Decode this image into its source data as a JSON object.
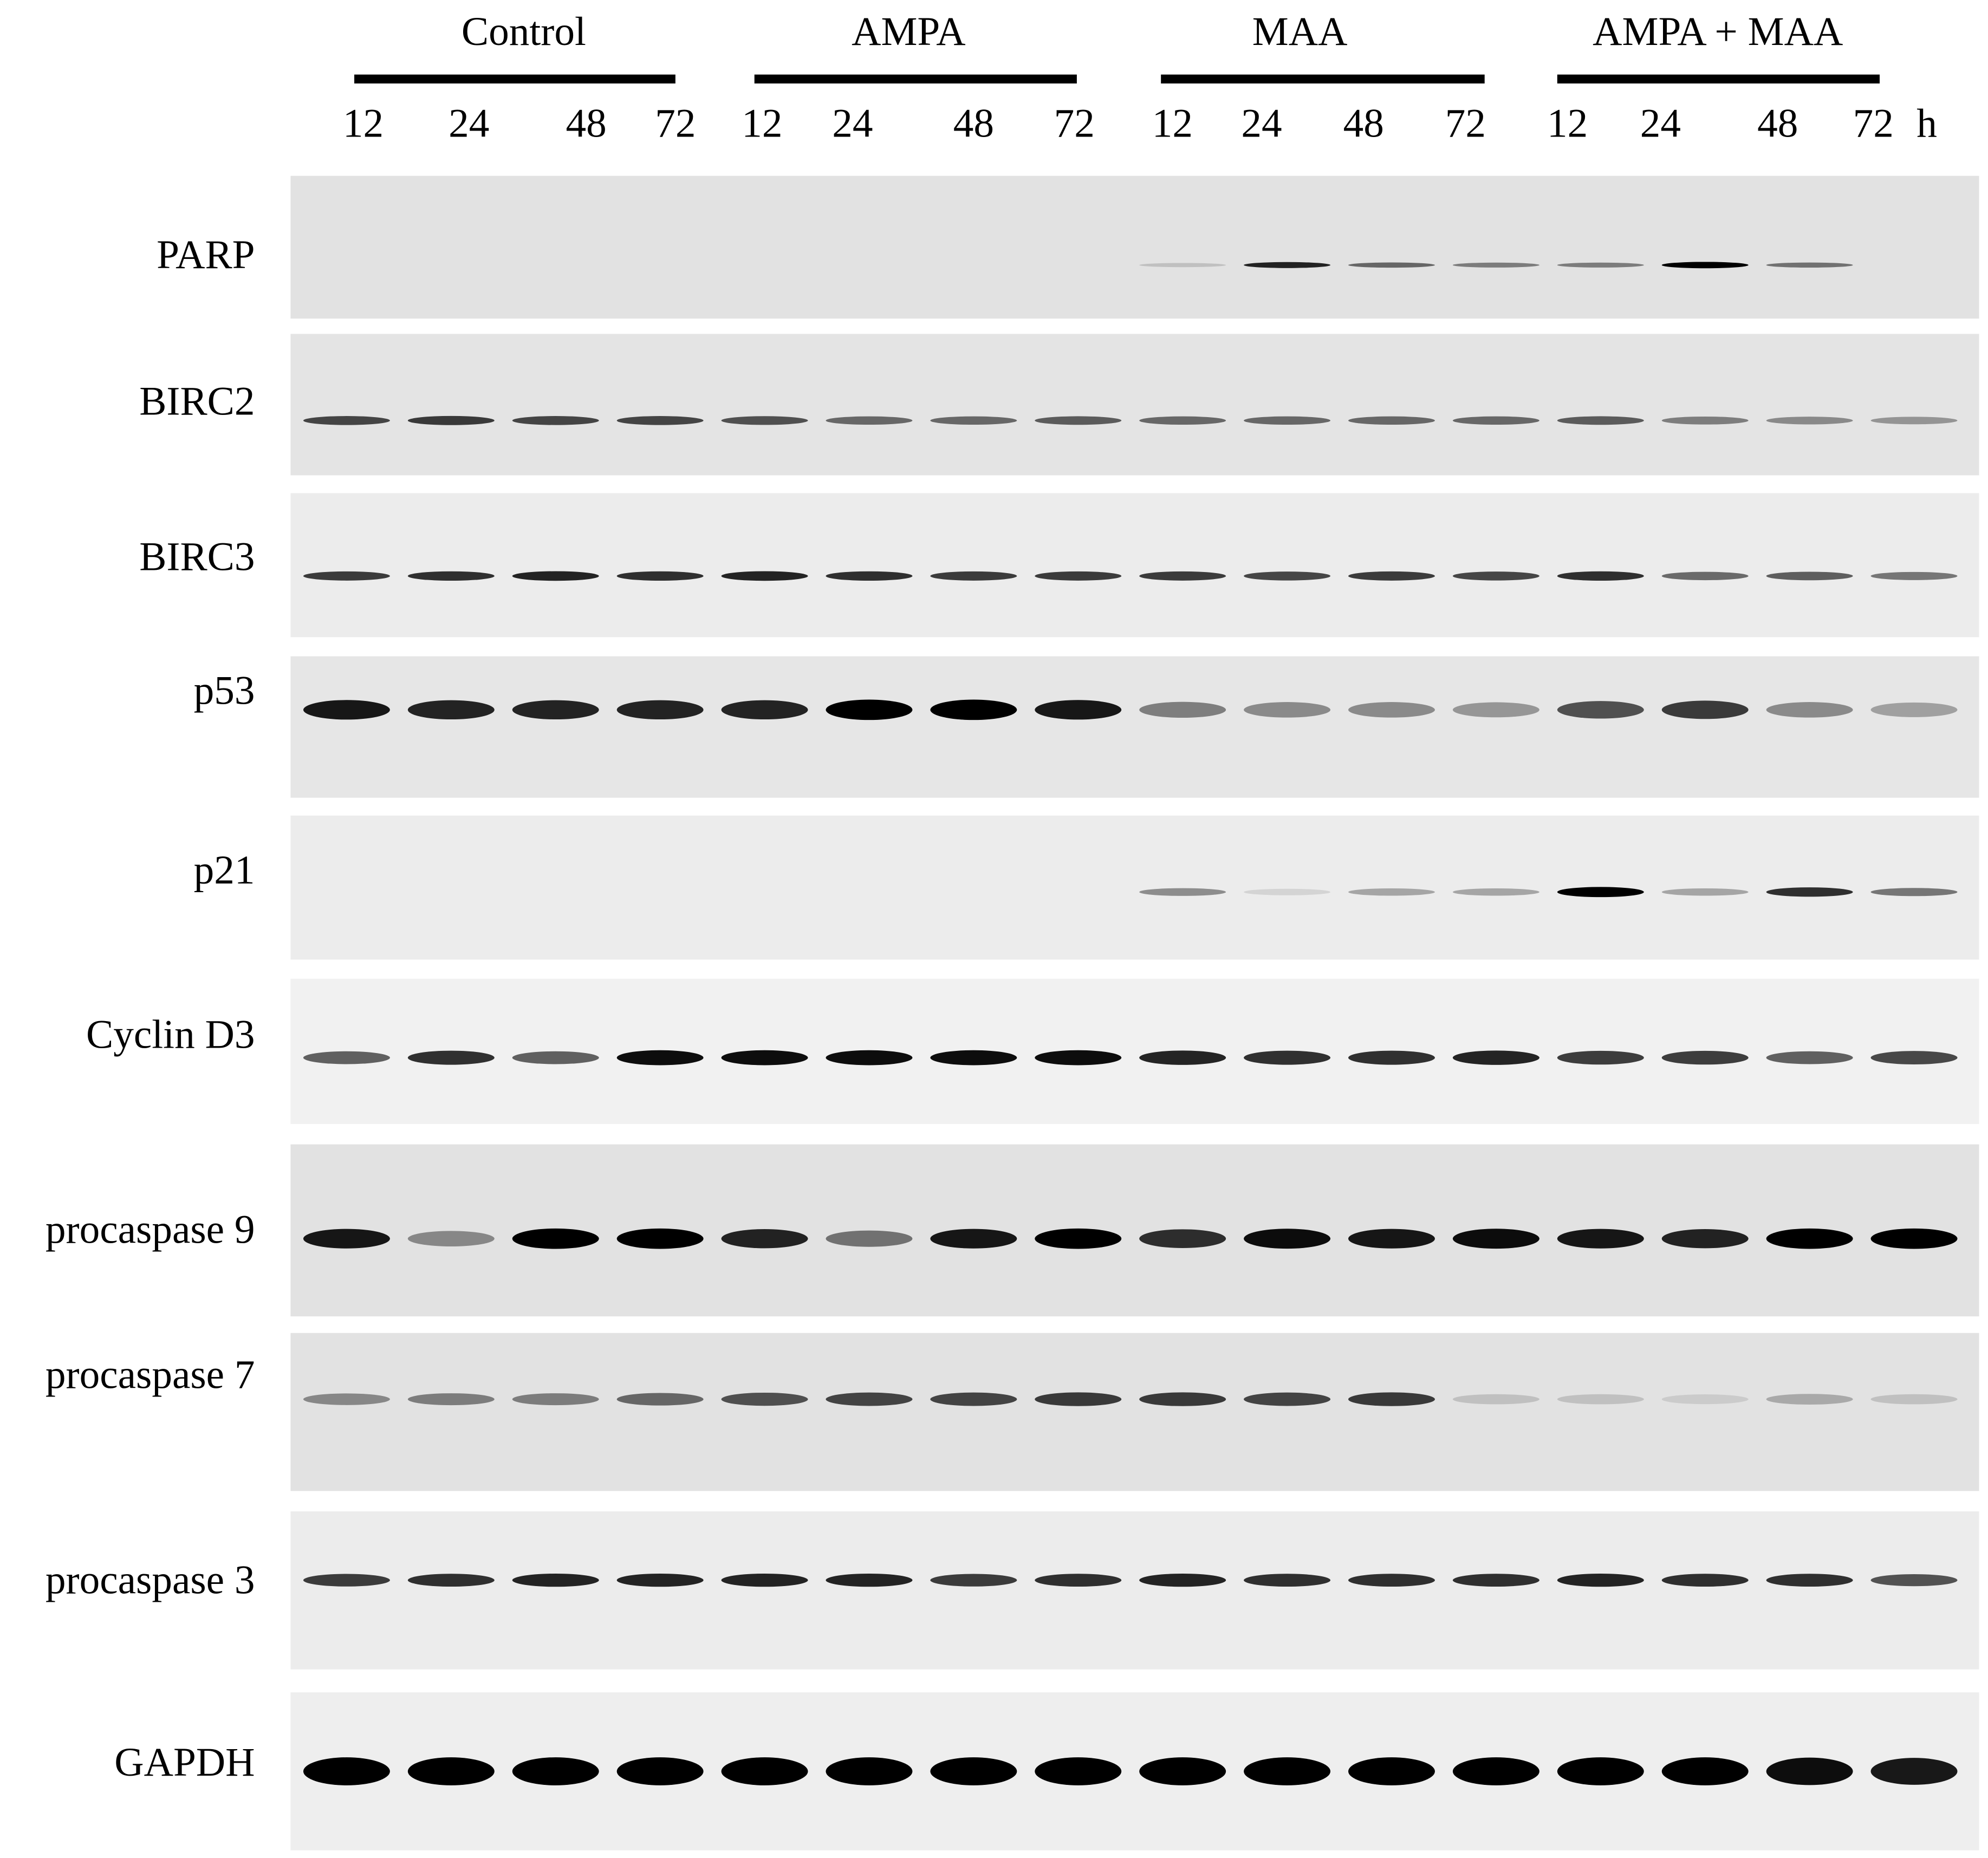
{
  "groups": [
    {
      "label": "Control",
      "times": [
        "12",
        "24",
        "48",
        "72"
      ]
    },
    {
      "label": "AMPA",
      "times": [
        "12",
        "24",
        "48",
        "72"
      ]
    },
    {
      "label": "MAA",
      "times": [
        "12",
        "24",
        "48",
        "72"
      ]
    },
    {
      "label": "AMPA + MAA",
      "times": [
        "12",
        "24",
        "48",
        "72"
      ]
    }
  ],
  "time_unit": "h",
  "rows": [
    "PARP",
    "BIRC2",
    "BIRC3",
    "p53",
    "p21",
    "Cyclin D3",
    "procaspase 9",
    "procaspase 7",
    "procaspase 3",
    "GAPDH"
  ]
}
